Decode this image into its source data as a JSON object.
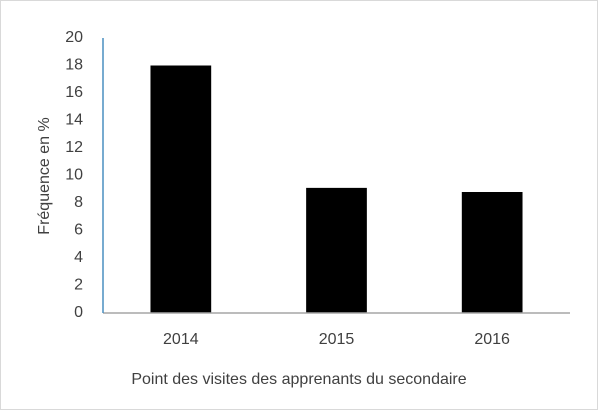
{
  "chart_data": {
    "type": "bar",
    "x_label": "Point des visites des apprenants du secondaire",
    "y_label": "Fréquence en %",
    "categories": [
      "2014",
      "2015",
      "2016"
    ],
    "values": [
      18,
      9.1,
      8.8
    ],
    "color": "#000000",
    "ylim": [
      0,
      20
    ],
    "yticks": [
      0,
      2,
      4,
      6,
      8,
      10,
      12,
      14,
      16,
      18,
      20
    ],
    "grid": false
  }
}
